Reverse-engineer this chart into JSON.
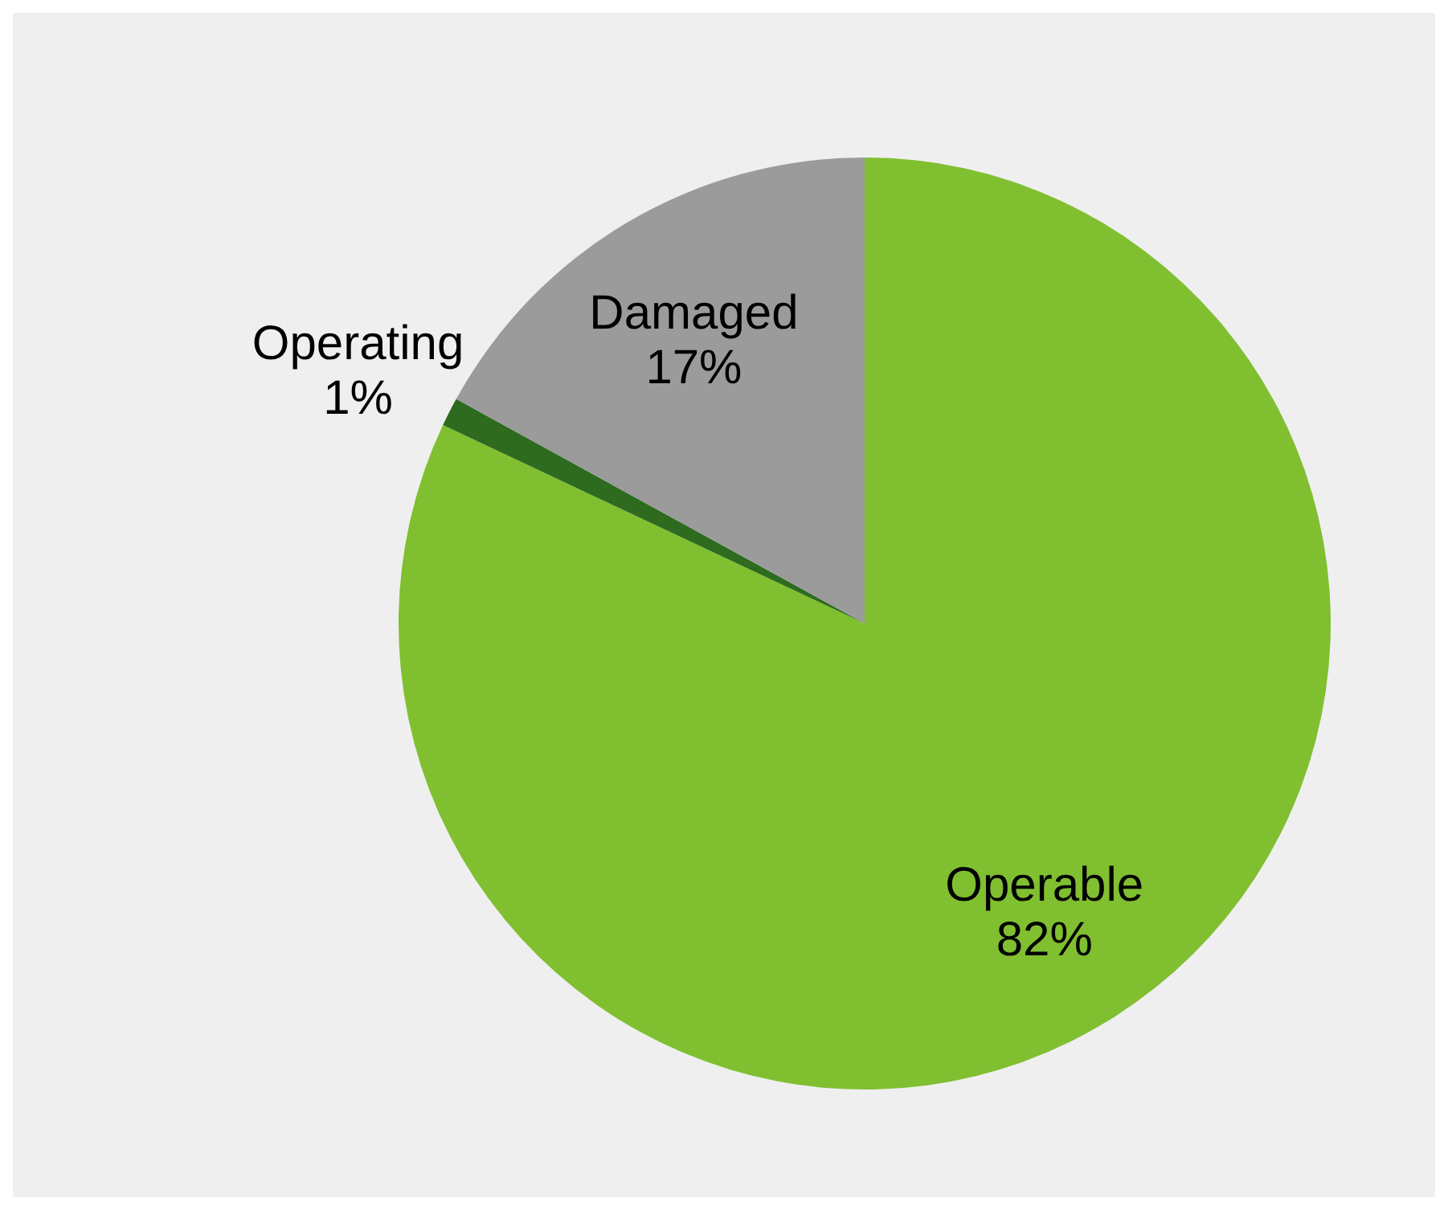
{
  "chart_data": {
    "type": "pie",
    "categories": [
      "Operable",
      "Operating",
      "Damaged"
    ],
    "values": [
      82,
      1,
      17
    ],
    "value_labels": [
      "82%",
      "1%",
      "17%"
    ],
    "colors": [
      "#80bf30",
      "#2e6b1f",
      "#9a9b9a"
    ],
    "legend": false
  }
}
